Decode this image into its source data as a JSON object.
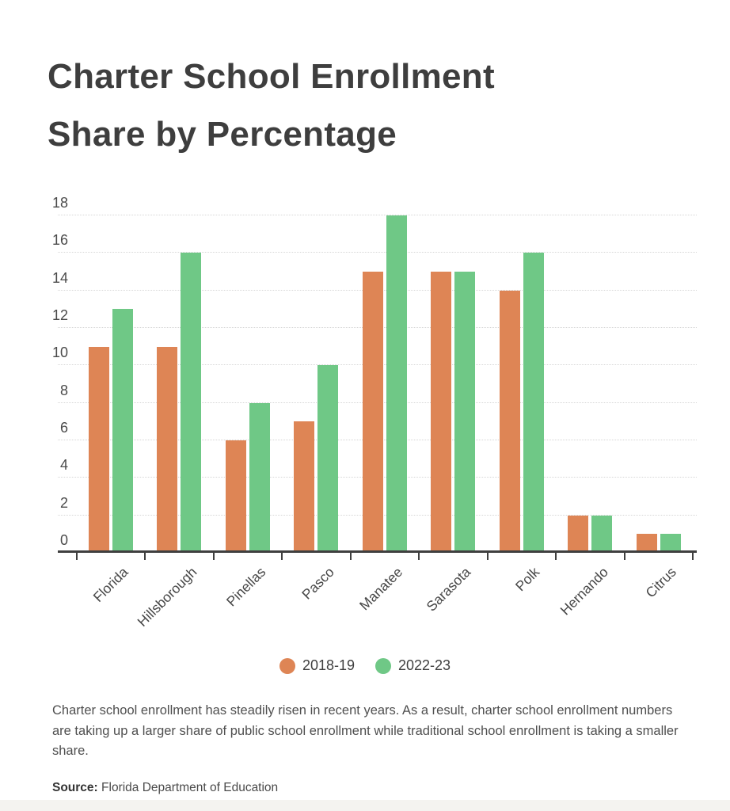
{
  "title": {
    "line1": "Charter School Enrollment",
    "line2": "Share by Percentage"
  },
  "chart_data": {
    "type": "bar",
    "categories": [
      "Florida",
      "Hillsborough",
      "Pinellas",
      "Pasco",
      "Manatee",
      "Sarasota",
      "Polk",
      "Hernando",
      "Citrus"
    ],
    "series": [
      {
        "name": "2018-19",
        "color": "#DE8555",
        "values": [
          11,
          11,
          6,
          7,
          15,
          15,
          14,
          2,
          1
        ]
      },
      {
        "name": "2022-23",
        "color": "#6FC886",
        "values": [
          13,
          16,
          8,
          10,
          18,
          15,
          16,
          2,
          1
        ]
      }
    ],
    "title": "Charter School Enrollment Share by Percentage",
    "xlabel": "",
    "ylabel": "",
    "ylim": [
      0,
      18
    ],
    "ytick_step": 2,
    "yticks": [
      0,
      2,
      4,
      6,
      8,
      10,
      12,
      14,
      16,
      18
    ],
    "grid": "horizontal-dotted",
    "legend_position": "bottom-center",
    "x_label_rotation": -45
  },
  "legend": {
    "items": [
      {
        "label": "2018-19",
        "color": "#DE8555"
      },
      {
        "label": "2022-23",
        "color": "#6FC886"
      }
    ]
  },
  "caption": "Charter school enrollment has steadily risen in recent years. As a result, charter school enrollment numbers are taking up a larger share of public school enrollment while traditional school enrollment is taking a smaller share.",
  "source": {
    "label": "Source:",
    "text": "Florida Department of Education"
  },
  "colors": {
    "axis": "#3f3f3f",
    "gridline": "#d6d6d6",
    "title_text": "#3e3e3e",
    "tick_text": "#4a4a4a"
  }
}
